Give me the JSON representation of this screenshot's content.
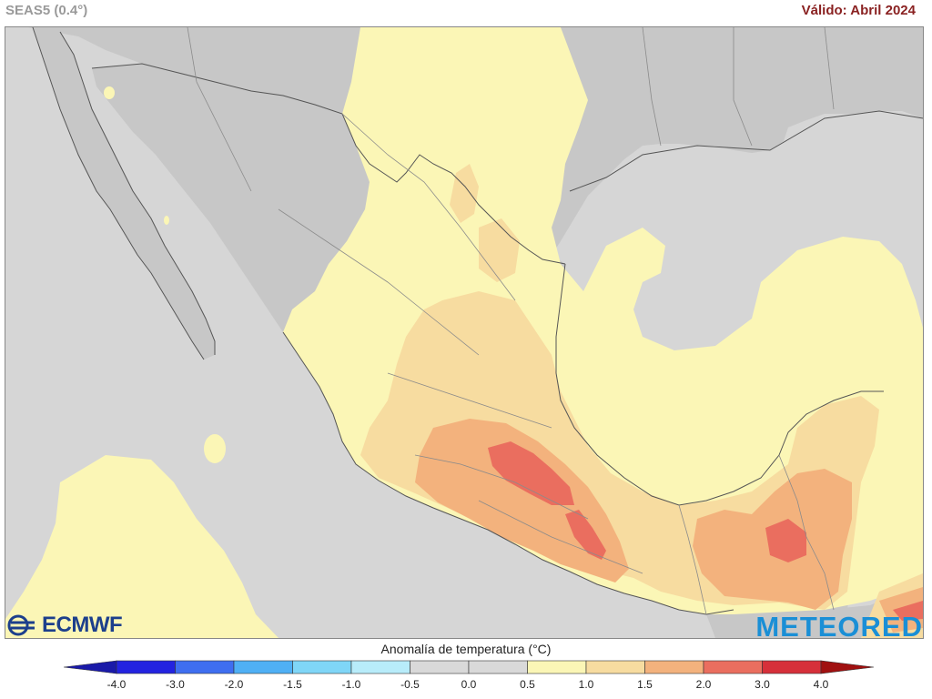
{
  "header": {
    "model_label": "SEAS5 (0.4°)",
    "valid_label": "Válido: Abril 2024"
  },
  "map": {
    "region": "Mexico and Central America",
    "variable": "temperature anomaly",
    "colors": {
      "ocean": "#d6d6d6",
      "land_neutral": "#c8c8c8",
      "anom_0_5_1_0": "#fbf6b6",
      "anom_1_0_1_5": "#f7dca0",
      "anom_1_5_2_0": "#f3b27d",
      "anom_2_0_3_0": "#ea6e5f"
    }
  },
  "logos": {
    "ecmwf_text": "ECMWF",
    "meteored_text": "METEORED",
    "ecmwf_icon": "ecmwf-swirl-icon"
  },
  "legend": {
    "title": "Anomalía de temperatura (°C)",
    "ticks": [
      "-4.0",
      "-3.0",
      "-2.0",
      "-1.5",
      "-1.0",
      "-0.5",
      "0.0",
      "0.5",
      "1.0",
      "1.5",
      "2.0",
      "3.0",
      "4.0"
    ],
    "colors": [
      "#2323e0",
      "#3f6ef0",
      "#4fb0f5",
      "#7fd6f7",
      "#b8ecfa",
      "#d9d9d9",
      "#d9d9d9",
      "#fbf6b6",
      "#f7dca0",
      "#f3b27d",
      "#ea6e5f",
      "#d6303a"
    ],
    "left_arrow_color": "#1a1aa8",
    "right_arrow_color": "#a01010"
  }
}
